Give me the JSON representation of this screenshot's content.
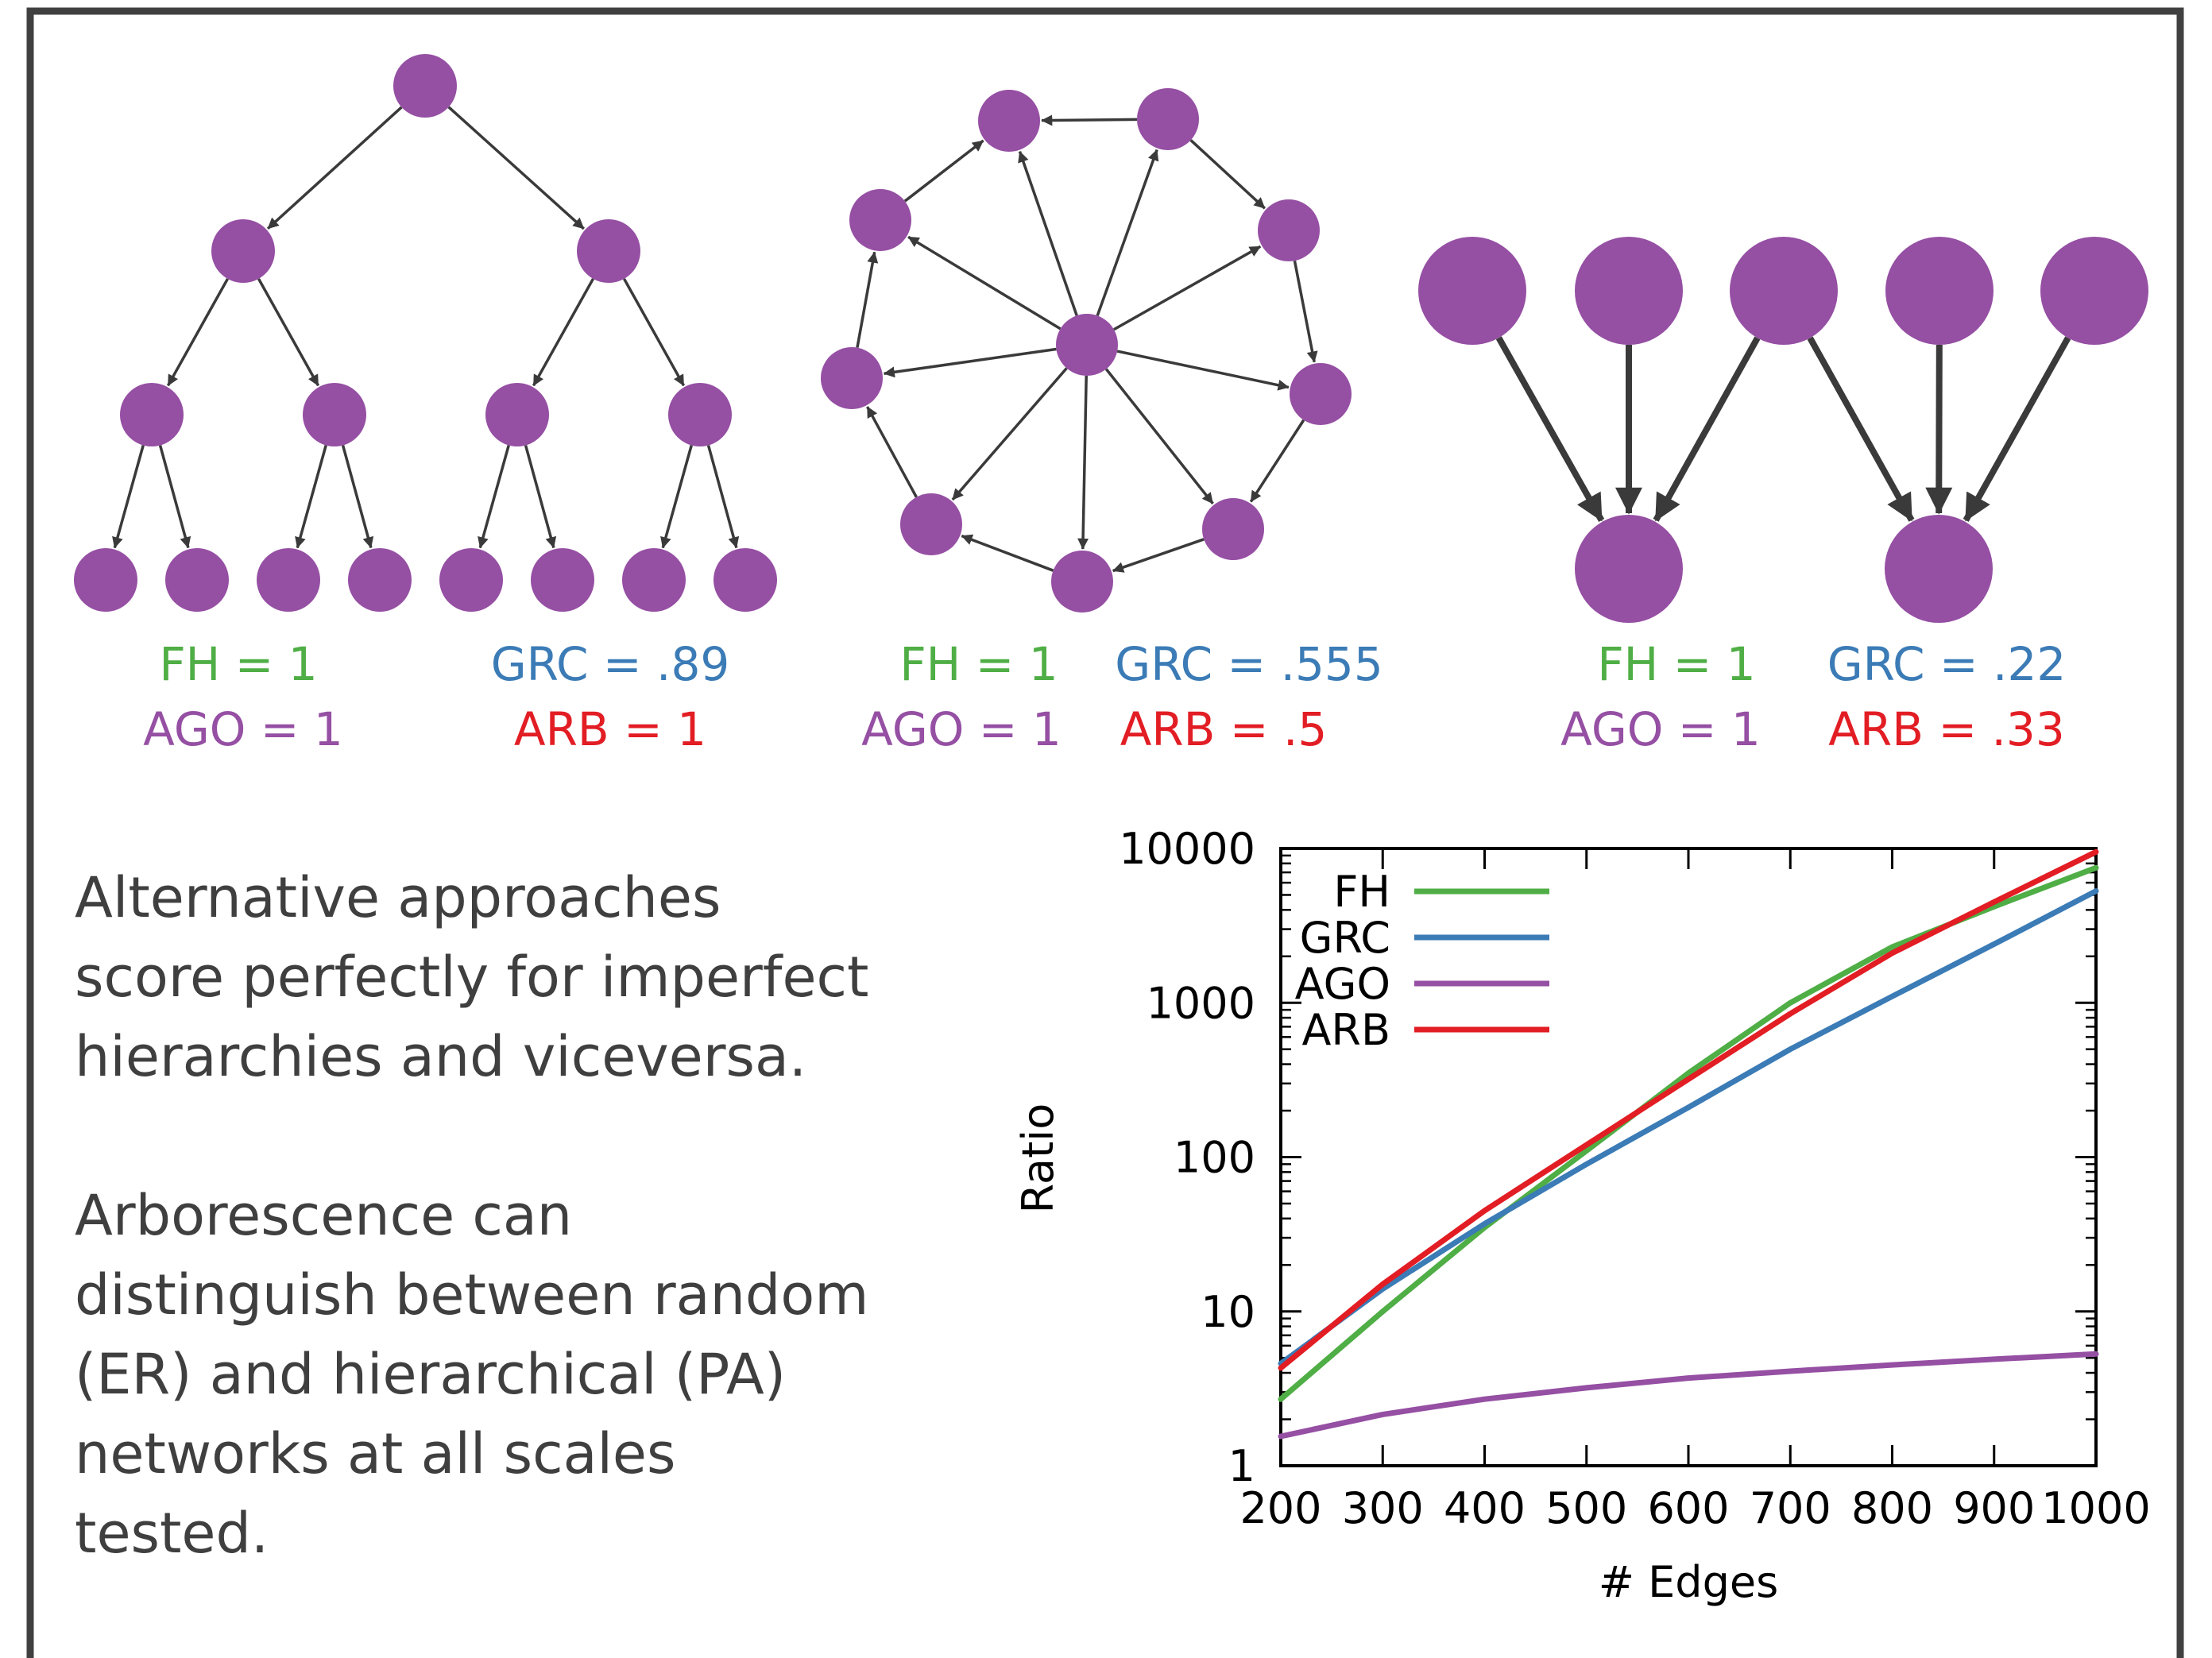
{
  "colors": {
    "node": "#954fa3",
    "edge": "#3a3a3a",
    "fh": "#4fae45",
    "grc": "#3b7bb6",
    "ago": "#954fa3",
    "arb": "#e21d24",
    "text": "#3f3f3f",
    "frame": "#404040"
  },
  "panels": [
    {
      "name": "binary-tree",
      "metrics": {
        "fh": "FH = 1",
        "grc": "GRC = .89",
        "ago": "AGO = 1",
        "arb": "ARB = 1"
      }
    },
    {
      "name": "star-cycle",
      "metrics": {
        "fh": "FH = 1",
        "grc": "GRC = .555",
        "ago": "AGO = 1",
        "arb": "ARB = .5"
      }
    },
    {
      "name": "bipartite",
      "metrics": {
        "fh": "FH = 1",
        "grc": "GRC = .22",
        "ago": "AGO = 1",
        "arb": "ARB = .33"
      }
    }
  ],
  "text_block": {
    "para1": [
      "Alternative approaches",
      "score perfectly for imperfect",
      "hierarchies and viceversa."
    ],
    "para2": [
      "Arborescence can",
      "distinguish between random",
      "(ER) and hierarchical (PA)",
      "networks at all scales",
      "tested."
    ]
  },
  "chart_data": {
    "type": "line",
    "xlabel": "# Edges",
    "ylabel": "Ratio",
    "xlim": [
      200,
      1000
    ],
    "ylim": [
      1,
      10000
    ],
    "yscale": "log",
    "xticks": [
      "200",
      "300",
      "400",
      "500",
      "600",
      "700",
      "800",
      "900",
      "1000"
    ],
    "yticks": [
      "1",
      "10",
      "100",
      "1000",
      "10000"
    ],
    "legend_position": "top-left",
    "grid": false,
    "series": [
      {
        "name": "FH",
        "color": "#4fae45",
        "x": [
          200,
          300,
          400,
          500,
          600,
          700,
          800,
          900,
          1000
        ],
        "y": [
          2.7,
          10,
          35,
          110,
          350,
          1000,
          2300,
          4200,
          7500
        ]
      },
      {
        "name": "GRC",
        "color": "#3b7bb6",
        "x": [
          200,
          300,
          400,
          500,
          600,
          700,
          800,
          900,
          1000
        ],
        "y": [
          4.6,
          14,
          37,
          90,
          210,
          500,
          1100,
          2400,
          5300
        ]
      },
      {
        "name": "AGO",
        "color": "#954fa3",
        "x": [
          200,
          300,
          400,
          500,
          600,
          700,
          800,
          900,
          1000
        ],
        "y": [
          1.55,
          2.15,
          2.7,
          3.2,
          3.7,
          4.1,
          4.5,
          4.9,
          5.3
        ]
      },
      {
        "name": "ARB",
        "color": "#e21d24",
        "x": [
          200,
          300,
          400,
          500,
          600,
          700,
          800,
          900,
          1000
        ],
        "y": [
          4.3,
          15,
          45,
          120,
          320,
          850,
          2100,
          4500,
          9500
        ]
      }
    ]
  }
}
